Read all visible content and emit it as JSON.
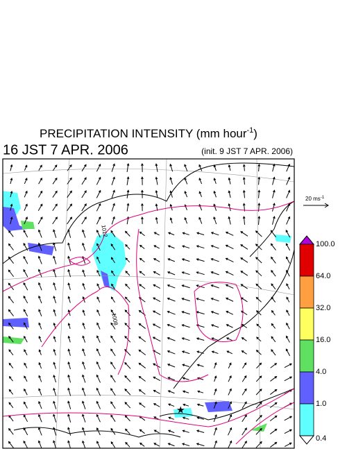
{
  "title": {
    "text": "PRECIPITATION INTENSITY (mm hour",
    "superscript": "-1",
    "close": ")"
  },
  "valid_time": "16 JST 7 APR. 2006",
  "init_time": "(init. 9 JST 7 APR. 2006)",
  "wind_reference": {
    "text": "20 ms",
    "superscript": "-1"
  },
  "contour_labels": [
    "1012",
    "1008"
  ],
  "colorbar": {
    "top_color": "#b000e0",
    "bottom_color": "#ffffff",
    "segments": [
      "#e00000",
      "#ffa040",
      "#ffff60",
      "#60e060",
      "#6060ff",
      "#60ffff"
    ],
    "levels": [
      {
        "value": 100,
        "label": "100.0"
      },
      {
        "value": 64,
        "label": "64.0"
      },
      {
        "value": 32,
        "label": "32.0"
      },
      {
        "value": 16,
        "label": "16.0"
      },
      {
        "value": 4,
        "label": "4.0"
      },
      {
        "value": 1,
        "label": "1.0"
      },
      {
        "value": 0.4,
        "label": "0.4"
      }
    ]
  }
}
